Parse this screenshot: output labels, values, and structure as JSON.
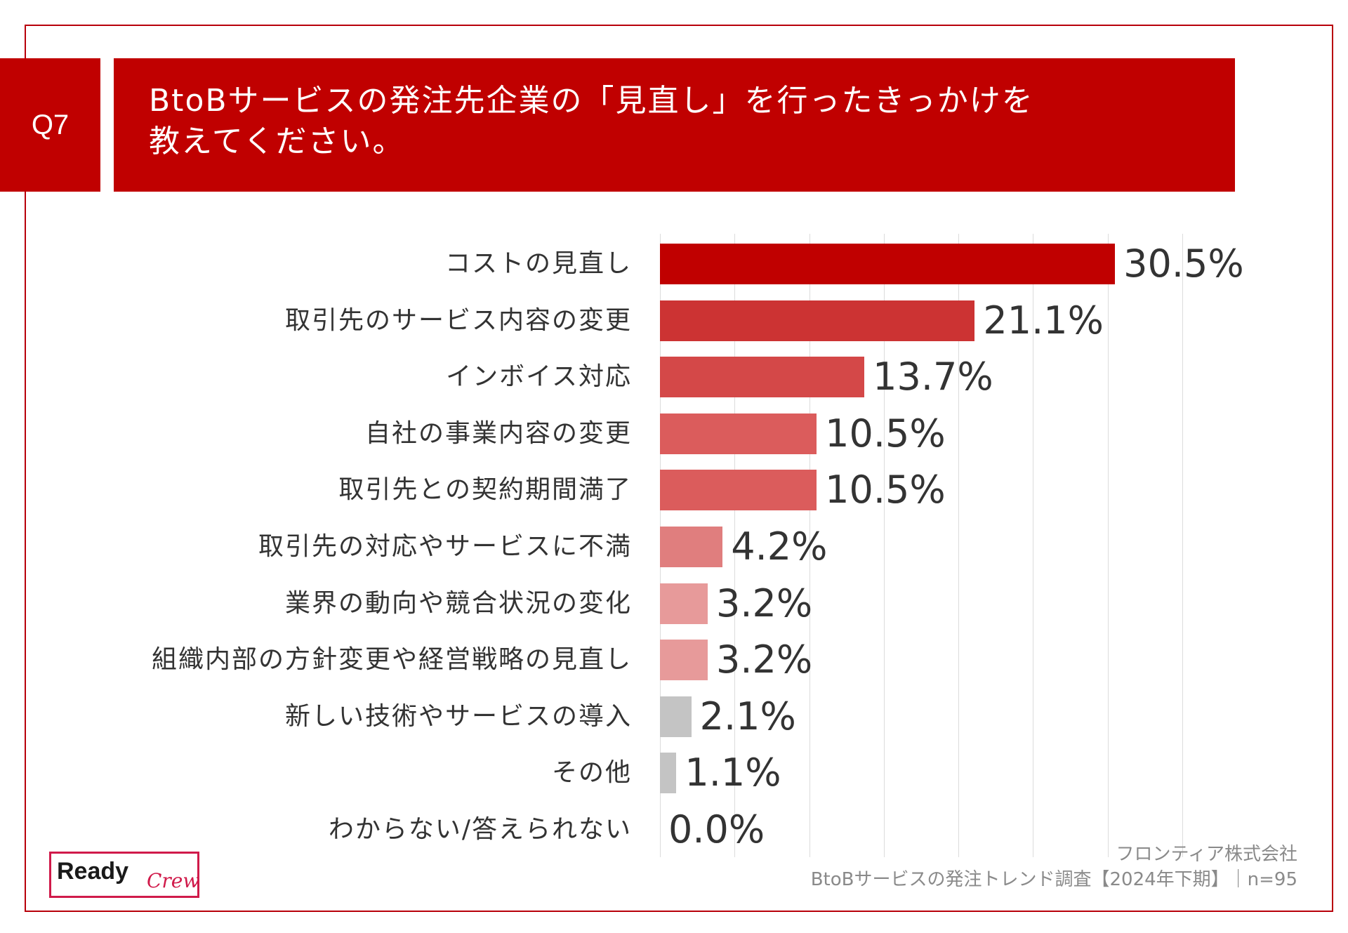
{
  "header": {
    "question_no": "Q7",
    "title_line1": "BtoBサービスの発注先企業の「見直し」を行ったきっかけを",
    "title_line2": "教えてください。"
  },
  "chart_data": {
    "type": "bar",
    "orientation": "horizontal",
    "title": "BtoBサービスの発注先企業の「見直し」を行ったきっかけを教えてください。",
    "categories": [
      "コストの見直し",
      "取引先のサービス内容の変更",
      "インボイス対応",
      "自社の事業内容の変更",
      "取引先との契約期間満了",
      "取引先の対応やサービスに不満",
      "業界の動向や競合状況の変化",
      "組織内部の方針変更や経営戦略の見直し",
      "新しい技術やサービスの導入",
      "その他",
      "わからない/答えられない"
    ],
    "values": [
      30.5,
      21.1,
      13.7,
      10.5,
      10.5,
      4.2,
      3.2,
      3.2,
      2.1,
      1.1,
      0.0
    ],
    "value_labels": [
      "30.5%",
      "21.1%",
      "13.7%",
      "10.5%",
      "10.5%",
      "4.2%",
      "3.2%",
      "3.2%",
      "2.1%",
      "1.1%",
      "0.0%"
    ],
    "bar_colors": [
      "#c00000",
      "#cc3333",
      "#d44848",
      "#db5c5c",
      "#db5c5c",
      "#e07e7e",
      "#e79a9a",
      "#e79a9a",
      "#c4c4c4",
      "#c4c4c4",
      "#c4c4c4"
    ],
    "xlim": [
      0,
      35
    ],
    "grid": true,
    "xlabel": "",
    "ylabel": ""
  },
  "footer": {
    "source_line1": "フロンティア株式会社",
    "source_line2": "BtoBサービスの発注トレンド調査【2024年下期】｜n=95"
  },
  "logo": {
    "word1": "Ready",
    "word2": "Crew"
  }
}
